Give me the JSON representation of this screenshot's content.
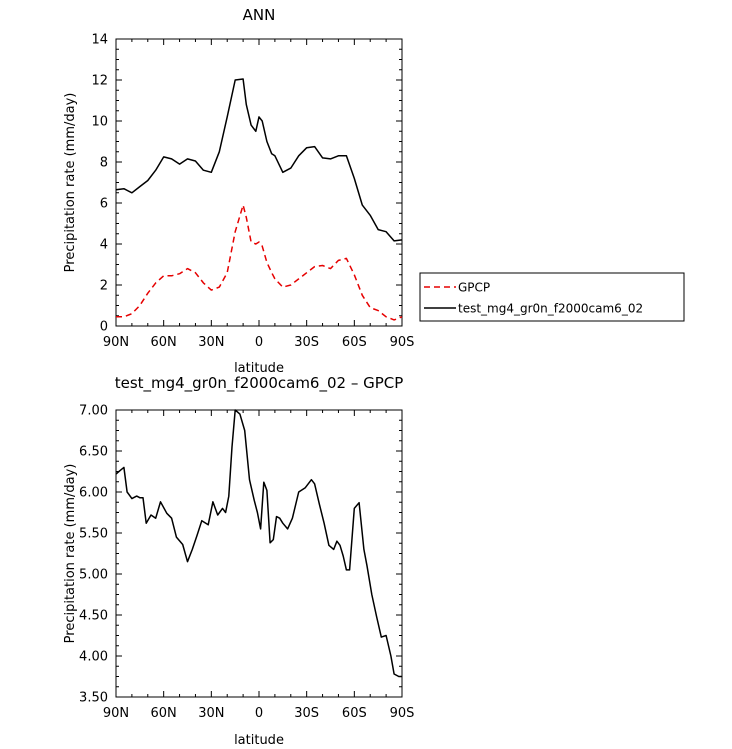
{
  "chart_data": [
    {
      "type": "line",
      "title": "ANN",
      "xlabel": "latitude",
      "ylabel": "Precipitation rate (mm/day)",
      "xlim": [
        90,
        -90
      ],
      "ylim": [
        0,
        14
      ],
      "yticks": [
        "0",
        "2",
        "4",
        "6",
        "8",
        "10",
        "12",
        "14"
      ],
      "xticks": [
        "90N",
        "60N",
        "30N",
        "0",
        "30S",
        "60S",
        "90S"
      ],
      "x": [
        90,
        85,
        80,
        75,
        70,
        65,
        60,
        55,
        50,
        45,
        40,
        35,
        30,
        25,
        20,
        15,
        10,
        8,
        5,
        2,
        0,
        -2,
        -5,
        -8,
        -10,
        -15,
        -20,
        -25,
        -30,
        -35,
        -40,
        -45,
        -50,
        -55,
        -60,
        -65,
        -70,
        -75,
        -80,
        -85,
        -90
      ],
      "legend": {
        "placement": "right"
      },
      "series": [
        {
          "name": "GPCP",
          "color": "#e60000",
          "dash": true,
          "values": [
            0.45,
            0.45,
            0.6,
            1.0,
            1.6,
            2.1,
            2.45,
            2.45,
            2.55,
            2.8,
            2.6,
            2.1,
            1.75,
            1.9,
            2.6,
            4.6,
            5.9,
            5.3,
            4.1,
            4.0,
            4.1,
            3.9,
            3.1,
            2.6,
            2.3,
            1.9,
            2.0,
            2.3,
            2.6,
            2.9,
            2.95,
            2.8,
            3.2,
            3.3,
            2.5,
            1.5,
            0.9,
            0.75,
            0.45,
            0.3,
            0.45
          ]
        },
        {
          "name": "test_mg4_gr0n_f2000cam6_02",
          "color": "#000000",
          "dash": false,
          "values": [
            6.65,
            6.7,
            6.5,
            6.8,
            7.1,
            7.6,
            8.25,
            8.15,
            7.9,
            8.15,
            8.05,
            7.6,
            7.5,
            8.5,
            10.2,
            12.0,
            12.05,
            10.8,
            9.8,
            9.5,
            10.2,
            10.0,
            9.0,
            8.4,
            8.3,
            7.5,
            7.7,
            8.3,
            8.7,
            8.75,
            8.2,
            8.15,
            8.3,
            8.3,
            7.2,
            5.9,
            5.4,
            4.7,
            4.6,
            4.15,
            4.2
          ]
        }
      ]
    },
    {
      "type": "line",
      "title": "test_mg4_gr0n_f2000cam6_02 – GPCP",
      "xlabel": "latitude",
      "ylabel": "Precipitation rate (mm/day)",
      "xlim": [
        90,
        -90
      ],
      "ylim": [
        3.5,
        7.0
      ],
      "yticks": [
        "3.50",
        "4.00",
        "4.50",
        "5.00",
        "5.50",
        "6.00",
        "6.50",
        "7.00"
      ],
      "xticks": [
        "90N",
        "60N",
        "30N",
        "0",
        "30S",
        "60S",
        "90S"
      ],
      "x": [
        90,
        87,
        85,
        83,
        80,
        77,
        75,
        73,
        71,
        68,
        65,
        62,
        58,
        55,
        52,
        48,
        45,
        42,
        39,
        36,
        32,
        29,
        26,
        23,
        21,
        19,
        17,
        15,
        12,
        9,
        6,
        3,
        1,
        -1,
        -3,
        -5,
        -7,
        -9,
        -11,
        -13,
        -15,
        -18,
        -21,
        -25,
        -29,
        -33,
        -35,
        -38,
        -41,
        -44,
        -47,
        -49,
        -51,
        -53,
        -55,
        -57,
        -60,
        -63,
        -66,
        -68,
        -71,
        -74,
        -77,
        -80,
        -83,
        -85,
        -88,
        -90
      ],
      "series": [
        {
          "name": "",
          "color": "#000000",
          "values": [
            6.22,
            6.27,
            6.3,
            6.0,
            5.92,
            5.95,
            5.93,
            5.93,
            5.62,
            5.72,
            5.68,
            5.88,
            5.74,
            5.68,
            5.45,
            5.36,
            5.15,
            5.3,
            5.47,
            5.65,
            5.6,
            5.88,
            5.72,
            5.8,
            5.75,
            5.95,
            6.55,
            7.0,
            6.95,
            6.75,
            6.15,
            5.9,
            5.75,
            5.55,
            6.12,
            6.02,
            5.38,
            5.42,
            5.7,
            5.68,
            5.62,
            5.55,
            5.68,
            6.0,
            6.05,
            6.15,
            6.1,
            5.85,
            5.62,
            5.35,
            5.3,
            5.4,
            5.35,
            5.22,
            5.05,
            5.05,
            5.8,
            5.87,
            5.3,
            5.1,
            4.75,
            4.48,
            4.23,
            4.25,
            4.0,
            3.78,
            3.75,
            3.75
          ]
        }
      ]
    }
  ]
}
